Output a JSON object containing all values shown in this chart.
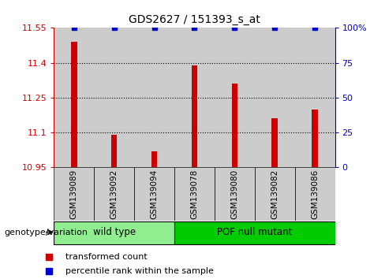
{
  "title": "GDS2627 / 151393_s_at",
  "samples": [
    "GSM139089",
    "GSM139092",
    "GSM139094",
    "GSM139078",
    "GSM139080",
    "GSM139082",
    "GSM139086"
  ],
  "bar_values": [
    11.49,
    11.09,
    11.02,
    11.39,
    11.31,
    11.16,
    11.2
  ],
  "percentile_values": [
    100,
    100,
    100,
    100,
    100,
    100,
    100
  ],
  "ylim_left": [
    10.95,
    11.55
  ],
  "ylim_right": [
    0,
    100
  ],
  "yticks_left": [
    10.95,
    11.1,
    11.25,
    11.4,
    11.55
  ],
  "yticks_right": [
    0,
    25,
    50,
    75,
    100
  ],
  "ytick_labels_left": [
    "10.95",
    "11.1",
    "11.25",
    "11.4",
    "11.55"
  ],
  "ytick_labels_right": [
    "0",
    "25",
    "50",
    "75",
    "100%"
  ],
  "groups": [
    {
      "label": "wild type",
      "indices": [
        0,
        1,
        2
      ],
      "color": "#90EE90"
    },
    {
      "label": "POF null mutant",
      "indices": [
        3,
        4,
        5,
        6
      ],
      "color": "#00CC00"
    }
  ],
  "bar_color": "#CC0000",
  "marker_color": "#0000CC",
  "sample_bg_color": "#CCCCCC",
  "legend_bar_label": "transformed count",
  "legend_marker_label": "percentile rank within the sample",
  "genotype_label": "genotype/variation"
}
